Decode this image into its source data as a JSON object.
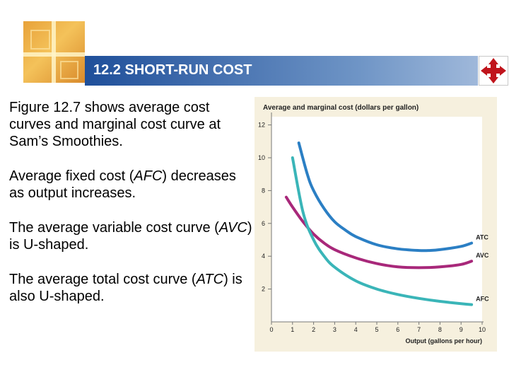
{
  "slide": {
    "title": "12.2 SHORT-RUN COST",
    "colors": {
      "title_bar": "#1f4f9a",
      "logo": "#e8a23a",
      "chart_background": "#f6f0de"
    }
  },
  "bullets": [
    {
      "parts": [
        {
          "text": "Figure 12.7 shows average cost curves and marginal cost curve at Sam’s Smoothies."
        }
      ]
    },
    {
      "parts": [
        {
          "text": "Average fixed cost ("
        },
        {
          "text": "AFC",
          "italic": true
        },
        {
          "text": ") decreases as output increases."
        }
      ]
    },
    {
      "parts": [
        {
          "text": "The average variable cost curve ("
        },
        {
          "text": "AVC",
          "italic": true
        },
        {
          "text": ") is U-shaped."
        }
      ]
    },
    {
      "parts": [
        {
          "text": "The average total cost curve ("
        },
        {
          "text": "ATC",
          "italic": true
        },
        {
          "text": ") is also U-shaped."
        }
      ]
    }
  ],
  "chart_data": {
    "type": "line",
    "title": "Average and marginal cost (dollars per gallon)",
    "xlabel": "Output (gallons per hour)",
    "ylabel": "Average and marginal cost (dollars per gallon)",
    "xlim": [
      0,
      10
    ],
    "ylim": [
      0,
      12.5
    ],
    "x_ticks": [
      0,
      1,
      2,
      3,
      4,
      5,
      6,
      7,
      8,
      9,
      10
    ],
    "y_ticks": [
      2,
      4,
      6,
      8,
      10,
      12
    ],
    "grid": false,
    "series": [
      {
        "name": "ATC",
        "color": "#2b7fc4",
        "x": [
          1.3,
          1.7,
          2.0,
          2.5,
          3.0,
          3.5,
          4.0,
          5.0,
          6.0,
          7.0,
          7.5,
          8.0,
          9.0,
          9.5
        ],
        "y": [
          10.9,
          9.0,
          8.0,
          6.9,
          6.1,
          5.6,
          5.2,
          4.7,
          4.45,
          4.35,
          4.35,
          4.4,
          4.6,
          4.8
        ]
      },
      {
        "name": "AVC",
        "color": "#a8287a",
        "x": [
          0.7,
          1.0,
          1.5,
          2.0,
          2.5,
          3.0,
          4.0,
          5.0,
          6.0,
          7.0,
          8.0,
          9.0,
          9.5
        ],
        "y": [
          7.6,
          7.0,
          6.1,
          5.35,
          4.8,
          4.4,
          3.9,
          3.55,
          3.35,
          3.3,
          3.35,
          3.5,
          3.7
        ]
      },
      {
        "name": "AFC",
        "color": "#3ab5b8",
        "x": [
          1.0,
          1.5,
          2.0,
          2.5,
          3.0,
          4.0,
          5.0,
          6.0,
          7.0,
          8.0,
          9.0,
          9.5
        ],
        "y": [
          10.0,
          6.67,
          5.0,
          4.0,
          3.33,
          2.5,
          2.0,
          1.67,
          1.43,
          1.25,
          1.11,
          1.05
        ]
      }
    ]
  }
}
